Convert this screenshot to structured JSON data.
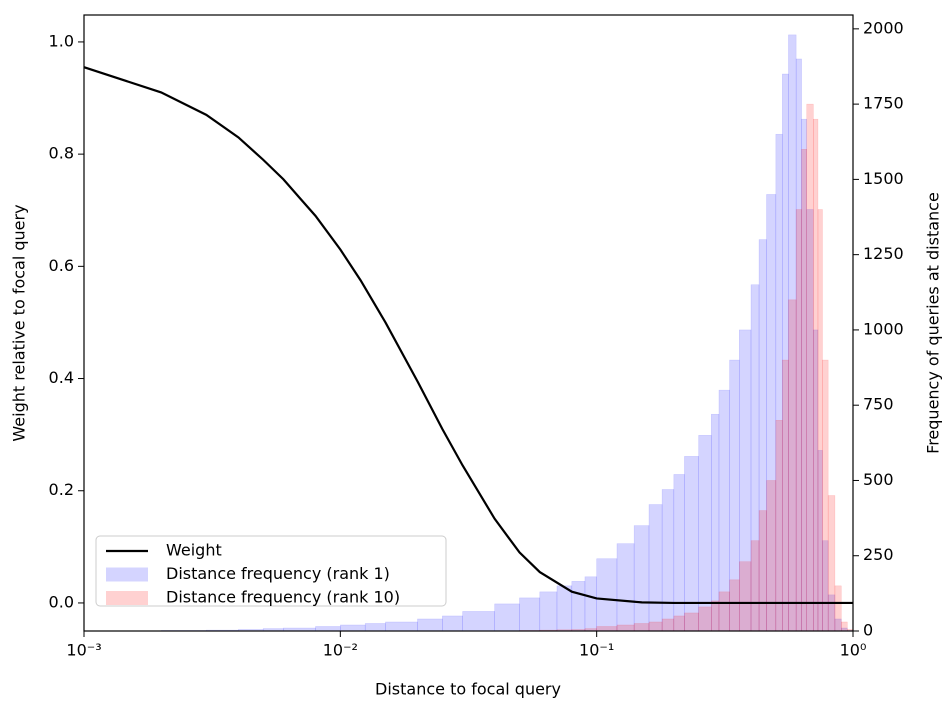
{
  "chart_data": {
    "type": "line",
    "xlabel": "Distance to focal query",
    "ylabel": "Weight relative to focal query",
    "y2label": "Frequency of queries at distance",
    "xscale": "log",
    "xlim": [
      0.001,
      1
    ],
    "xticks": [
      {
        "value": 0.001,
        "label": "10⁻³"
      },
      {
        "value": 0.01,
        "label": "10⁻²"
      },
      {
        "value": 0.1,
        "label": "10⁻¹"
      },
      {
        "value": 1,
        "label": "10⁰"
      }
    ],
    "ylim": [
      -0.05,
      1.048
    ],
    "yticks": [
      {
        "value": 0,
        "label": "0.0"
      },
      {
        "value": 0.2,
        "label": "0.2"
      },
      {
        "value": 0.4,
        "label": "0.4"
      },
      {
        "value": 0.6,
        "label": "0.6"
      },
      {
        "value": 0.8,
        "label": "0.8"
      },
      {
        "value": 1,
        "label": "1.0"
      }
    ],
    "y2lim": [
      0,
      2046
    ],
    "y2ticks": [
      0,
      250,
      500,
      750,
      1000,
      1250,
      1500,
      1750,
      2000
    ],
    "legend": "lower left",
    "bins": [
      0.002,
      0.003,
      0.004,
      0.005,
      0.006,
      0.008,
      0.01,
      0.0125,
      0.015,
      0.02,
      0.025,
      0.03,
      0.04,
      0.05,
      0.06,
      0.07,
      0.08,
      0.09,
      0.1,
      0.12,
      0.14,
      0.16,
      0.18,
      0.2,
      0.22,
      0.25,
      0.28,
      0.3,
      0.33,
      0.36,
      0.4,
      0.43,
      0.46,
      0.5,
      0.53,
      0.56,
      0.6,
      0.63,
      0.66,
      0.7,
      0.73,
      0.76,
      0.8,
      0.85,
      0.9,
      0.95,
      1
    ],
    "series": [
      {
        "name": "Weight",
        "type": "line",
        "color": "#000000",
        "x": [
          0.001,
          0.002,
          0.003,
          0.004,
          0.005,
          0.006,
          0.007,
          0.008,
          0.01,
          0.012,
          0.015,
          0.02,
          0.025,
          0.03,
          0.04,
          0.05,
          0.06,
          0.08,
          0.1,
          0.15,
          0.2,
          0.3,
          0.5,
          1
        ],
        "values": [
          0.955,
          0.91,
          0.87,
          0.83,
          0.79,
          0.755,
          0.72,
          0.69,
          0.63,
          0.575,
          0.5,
          0.395,
          0.31,
          0.245,
          0.15,
          0.09,
          0.055,
          0.02,
          0.008,
          0.001,
          0,
          0,
          0,
          0
        ]
      },
      {
        "name": "Distance frequency (rank 1)",
        "type": "histogram",
        "axis": "y2",
        "color": "rgba(0,0,255,0.17)",
        "values": [
          2,
          3,
          5,
          8,
          10,
          15,
          20,
          25,
          30,
          40,
          50,
          65,
          90,
          110,
          130,
          150,
          165,
          180,
          240,
          290,
          350,
          420,
          470,
          520,
          580,
          650,
          720,
          800,
          900,
          1000,
          1150,
          1300,
          1450,
          1650,
          1850,
          1980,
          1900,
          1700,
          1400,
          1000,
          600,
          300,
          120,
          40,
          10,
          2
        ]
      },
      {
        "name": "Distance frequency (rank 10)",
        "type": "histogram",
        "axis": "y2",
        "color": "rgba(255,0,0,0.18)",
        "values": [
          0,
          0,
          0,
          0,
          0,
          0,
          0,
          0,
          0,
          0,
          0,
          0,
          0,
          2,
          3,
          4,
          5,
          8,
          15,
          20,
          25,
          30,
          40,
          50,
          60,
          80,
          100,
          130,
          170,
          230,
          300,
          400,
          500,
          700,
          900,
          1100,
          1400,
          1600,
          1750,
          1700,
          1400,
          900,
          450,
          150,
          30,
          5
        ]
      }
    ]
  }
}
